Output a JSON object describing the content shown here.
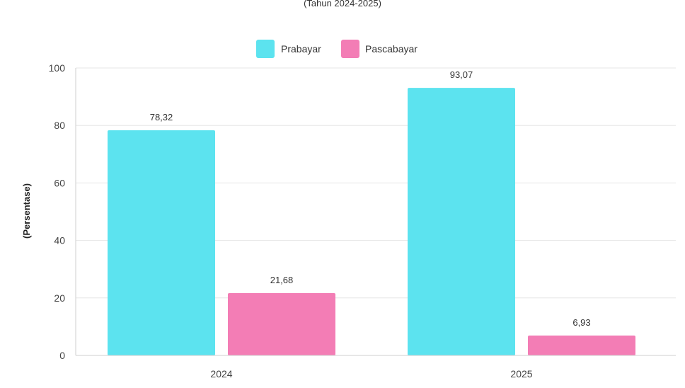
{
  "subtitle": "(Tahun 2024-2025)",
  "colors": {
    "Prabayar": "#5ce3ef",
    "Pascabayar": "#f37db5"
  },
  "chart_data": {
    "type": "bar",
    "title": "",
    "subtitle": "(Tahun 2024-2025)",
    "xlabel": "",
    "ylabel": "(Persentase)",
    "categories": [
      "2024",
      "2025"
    ],
    "series": [
      {
        "name": "Prabayar",
        "values": [
          78.32,
          93.07
        ],
        "labels": [
          "78,32",
          "93,07"
        ]
      },
      {
        "name": "Pascabayar",
        "values": [
          21.68,
          6.93
        ],
        "labels": [
          "21,68",
          "6,93"
        ]
      }
    ],
    "ylim": [
      0,
      100
    ],
    "yticks": [
      "0",
      "20",
      "40",
      "60",
      "80",
      "100"
    ],
    "grid": true,
    "legend_position": "top-center"
  }
}
